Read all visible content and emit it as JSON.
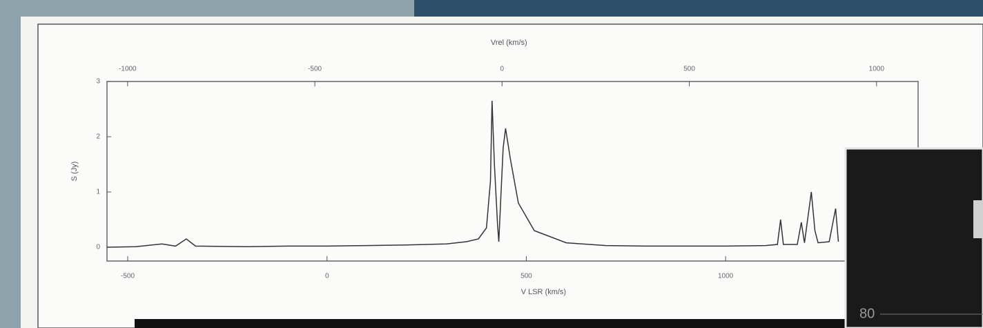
{
  "chart_data": {
    "type": "line",
    "xlabel": "V LSR (km/s)",
    "ylabel": "S (Jy)",
    "x2label": "Vrel (km/s)",
    "x": [
      -552,
      -480,
      -414,
      -380,
      -353,
      -330,
      -200,
      -100,
      0,
      100,
      200,
      300,
      350,
      380,
      400,
      410,
      414,
      420,
      428,
      431,
      436,
      442,
      448,
      460,
      480,
      520,
      600,
      700,
      800,
      900,
      1000,
      1100,
      1130,
      1138,
      1145,
      1180,
      1190,
      1198,
      1215,
      1224,
      1232,
      1260,
      1276,
      1283
    ],
    "values": [
      0.0,
      0.01,
      0.06,
      0.02,
      0.15,
      0.02,
      0.01,
      0.02,
      0.02,
      0.03,
      0.04,
      0.06,
      0.1,
      0.15,
      0.35,
      1.2,
      2.65,
      1.5,
      0.4,
      0.1,
      0.9,
      1.8,
      2.15,
      1.6,
      0.8,
      0.3,
      0.08,
      0.03,
      0.02,
      0.02,
      0.02,
      0.03,
      0.05,
      0.5,
      0.05,
      0.05,
      0.45,
      0.08,
      1.0,
      0.3,
      0.08,
      0.1,
      0.7,
      0.1
    ],
    "color": "#333333",
    "xlim": [
      -552,
      1483
    ],
    "xticks": [
      -500,
      0,
      500,
      1000
    ],
    "x2lim": [
      -1055,
      1111
    ],
    "x2ticks": [
      -1000,
      -500,
      0,
      500,
      1000
    ],
    "ylim": [
      -0.25,
      3
    ],
    "yticks": [
      0,
      1,
      2,
      3
    ]
  },
  "overlay": {
    "yticks": [
      80
    ]
  }
}
